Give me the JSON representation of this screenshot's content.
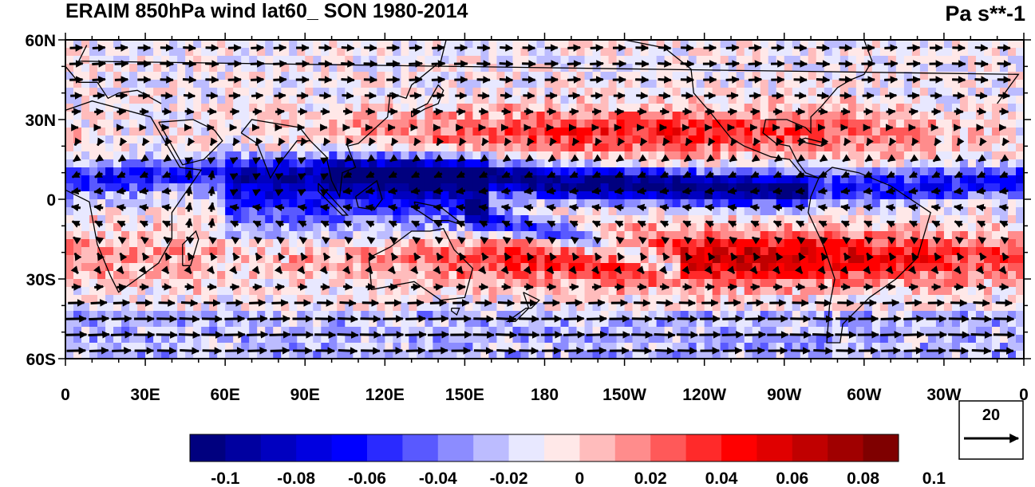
{
  "title": "ERAIM 850hPa wind lat60_ SON 1980-2014",
  "units": "Pa s**-1",
  "map": {
    "lat_labels": [
      "60N",
      "30N",
      "0",
      "30S",
      "60S"
    ],
    "lat_values": [
      60,
      30,
      0,
      -30,
      -60
    ],
    "lon_labels": [
      "0",
      "30E",
      "60E",
      "90E",
      "120E",
      "150E",
      "180",
      "150W",
      "120W",
      "90W",
      "60W",
      "30W",
      "0"
    ],
    "lon_values": [
      0,
      30,
      60,
      90,
      120,
      150,
      180,
      210,
      240,
      270,
      300,
      330,
      360
    ],
    "lon_range": [
      0,
      360
    ],
    "lat_range": [
      -60,
      60
    ]
  },
  "colorbar": {
    "colors": [
      "#00007f",
      "#0000a0",
      "#0000c0",
      "#0000e0",
      "#0000ff",
      "#2a2aff",
      "#5959ff",
      "#8c8cff",
      "#bcbcff",
      "#e8e8ff",
      "#ffe8e8",
      "#ffbcbc",
      "#ff8c8c",
      "#ff5959",
      "#ff2a2a",
      "#ff0000",
      "#e00000",
      "#c00000",
      "#a00000",
      "#7f0000"
    ],
    "labels": [
      "-0.1",
      "-0.08",
      "-0.06",
      "-0.04",
      "-0.02",
      "0",
      "0.02",
      "0.04",
      "0.06",
      "0.08",
      "0.1"
    ]
  },
  "reference_vector": {
    "label": "20"
  },
  "colors": {
    "positive": "#ff0000",
    "negative": "#0000ff",
    "neutral": "#ffffff",
    "arrow": "#000000"
  }
}
